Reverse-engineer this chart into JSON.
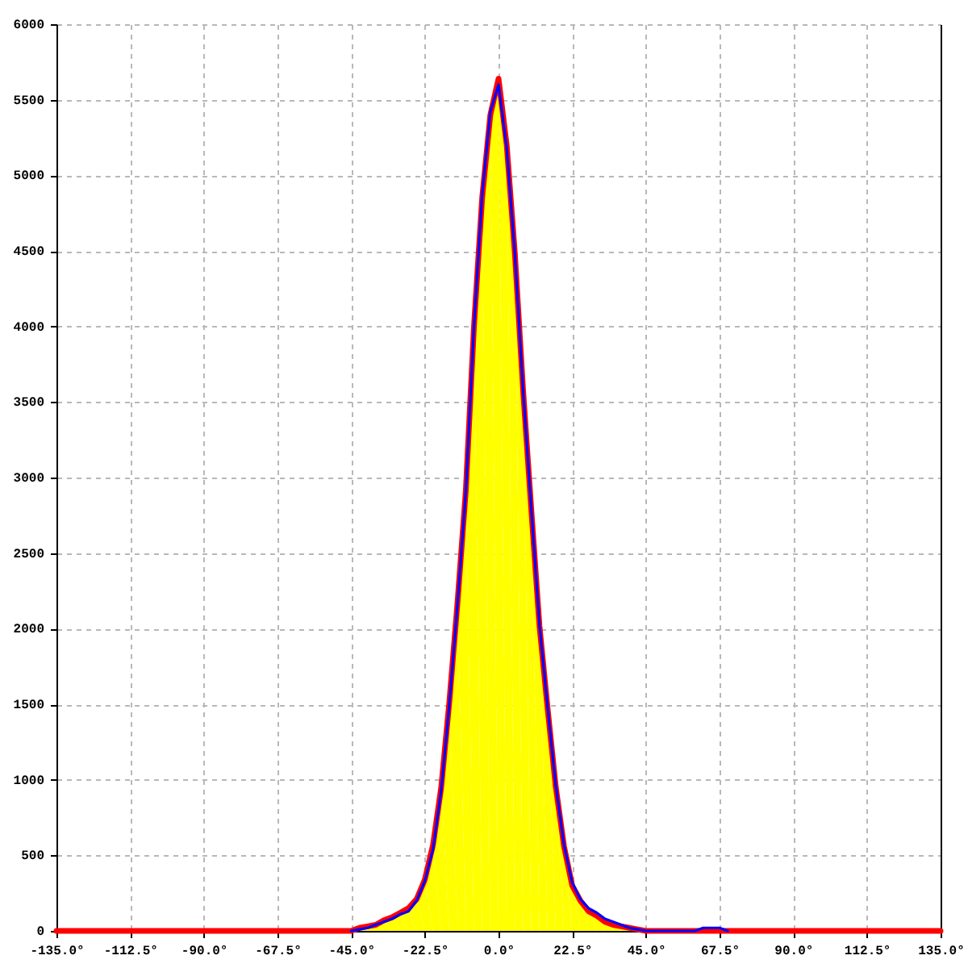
{
  "chart_data": {
    "type": "area",
    "xlim": [
      -135,
      135
    ],
    "xticks": [
      {
        "value": -135,
        "label": "-135.0°"
      },
      {
        "value": -112.5,
        "label": "-112.5°"
      },
      {
        "value": -90,
        "label": "-90.0°"
      },
      {
        "value": -67.5,
        "label": "-67.5°"
      },
      {
        "value": -45,
        "label": "-45.0°"
      },
      {
        "value": -22.5,
        "label": "-22.5°"
      },
      {
        "value": 0,
        "label": "0.0°"
      },
      {
        "value": 22.5,
        "label": "22.5°"
      },
      {
        "value": 45,
        "label": "45.0°"
      },
      {
        "value": 67.5,
        "label": "67.5°"
      },
      {
        "value": 90,
        "label": "90.0°"
      },
      {
        "value": 112.5,
        "label": "112.5°"
      },
      {
        "value": 135,
        "label": "135.0°"
      }
    ],
    "ylim": [
      0,
      6000
    ],
    "yticks": [
      0,
      500,
      1000,
      1500,
      2000,
      2500,
      3000,
      3500,
      4000,
      4500,
      5000,
      5500,
      6000
    ],
    "grid": true,
    "series": [
      {
        "color": "#ffff00",
        "x": [
          -45,
          -42.5,
          -40,
          -37.5,
          -35,
          -32.5,
          -30,
          -27.5,
          -25,
          -22.5,
          -20,
          -17.5,
          -15,
          -12.5,
          -10,
          -7.5,
          -5,
          -2.5,
          0,
          2.5,
          5,
          7.5,
          10,
          12.5,
          15,
          17.5,
          20,
          22.5,
          25,
          27.5,
          30,
          32.5,
          35,
          37.5,
          40,
          42.5,
          45
        ],
        "values": [
          0,
          10,
          20,
          40,
          60,
          80,
          110,
          130,
          200,
          330,
          540,
          930,
          1500,
          2170,
          2900,
          4000,
          4870,
          5420,
          5600,
          5180,
          4480,
          3580,
          2800,
          2030,
          1480,
          960,
          570,
          320,
          210,
          150,
          120,
          80,
          60,
          40,
          20,
          10,
          0
        ]
      },
      {
        "type": "line",
        "color": "#ff0000",
        "x": [
          -135,
          -45,
          -42.5,
          -40,
          -37.5,
          -35,
          -32.5,
          -30,
          -27.5,
          -25,
          -22.5,
          -20,
          -17.5,
          -15,
          -12.5,
          -10,
          -7.5,
          -5,
          -2.5,
          0,
          2.5,
          5,
          7.5,
          10,
          12.5,
          15,
          17.5,
          20,
          22.5,
          25,
          27.5,
          30,
          32.5,
          35,
          37.5,
          40,
          42.5,
          45,
          135
        ],
        "values": [
          0,
          0,
          20,
          30,
          40,
          70,
          90,
          120,
          150,
          210,
          340,
          570,
          950,
          1520,
          2180,
          2910,
          4000,
          4850,
          5400,
          5640,
          5200,
          4480,
          3580,
          2790,
          2020,
          1470,
          950,
          560,
          300,
          200,
          130,
          100,
          60,
          40,
          30,
          20,
          10,
          0,
          0
        ]
      },
      {
        "type": "line",
        "color": "#0000ff",
        "x": [
          -45,
          -42.5,
          -40,
          -37.5,
          -35,
          -32.5,
          -30,
          -27.5,
          -25,
          -22.5,
          -20,
          -17.5,
          -15,
          -12.5,
          -10,
          -7.5,
          -5,
          -2.5,
          0,
          2.5,
          5,
          7.5,
          10,
          12.5,
          15,
          17.5,
          20,
          22.5,
          25,
          27.5,
          30,
          32.5,
          35,
          37.5,
          40,
          42.5,
          45,
          60,
          62.5,
          65,
          67.5,
          70
        ],
        "values": [
          0,
          10,
          20,
          40,
          60,
          80,
          110,
          130,
          200,
          330,
          540,
          930,
          1500,
          2170,
          2900,
          4000,
          4870,
          5420,
          5600,
          5180,
          4480,
          3580,
          2800,
          2030,
          1480,
          960,
          570,
          320,
          210,
          150,
          120,
          80,
          60,
          40,
          20,
          10,
          0,
          0,
          20,
          20,
          20,
          0
        ]
      }
    ]
  }
}
